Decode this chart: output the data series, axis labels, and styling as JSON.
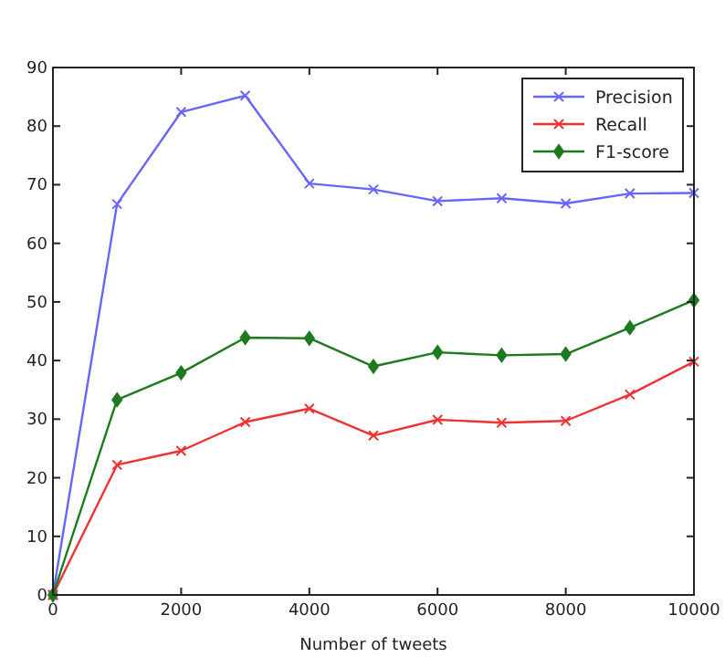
{
  "chart_data": {
    "type": "line",
    "xlabel": "Number of tweets",
    "x": [
      0,
      1000,
      2000,
      3000,
      4000,
      5000,
      6000,
      7000,
      8000,
      9000,
      10000
    ],
    "series": [
      {
        "name": "Precision",
        "color": "#6666ff",
        "marker": "cross",
        "values": [
          0,
          66.7,
          82.4,
          85.2,
          70.2,
          69.2,
          67.2,
          67.7,
          66.8,
          68.5,
          68.6
        ]
      },
      {
        "name": "Recall",
        "color": "#ee3333",
        "marker": "cross",
        "values": [
          0,
          22.2,
          24.6,
          29.5,
          31.8,
          27.2,
          29.9,
          29.4,
          29.7,
          34.2,
          39.8
        ]
      },
      {
        "name": "F1-score",
        "color": "#1e7a1e",
        "marker": "diamond",
        "values": [
          0,
          33.3,
          37.9,
          43.9,
          43.8,
          39.0,
          41.4,
          40.9,
          41.1,
          45.6,
          50.3
        ]
      }
    ],
    "xlim": [
      0,
      10000
    ],
    "xticks": [
      0,
      2000,
      4000,
      6000,
      8000,
      10000
    ],
    "ylim": [
      0,
      90
    ],
    "yticks": [
      0,
      10,
      20,
      30,
      40,
      50,
      60,
      70,
      80,
      90
    ],
    "grid": false,
    "legend": "top right",
    "line_style": "solid"
  }
}
